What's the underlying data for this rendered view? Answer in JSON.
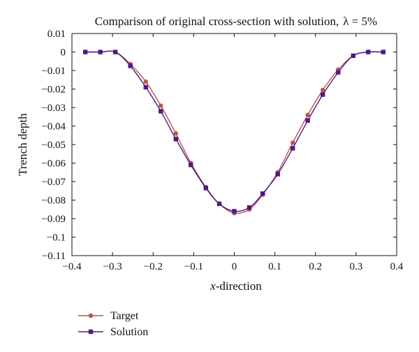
{
  "chart_data": {
    "type": "line",
    "title": "Comparison of original cross-section with solution,",
    "title_param": "λ = 5%",
    "xlabel_italic": "x",
    "xlabel_rest": "-direction",
    "ylabel": "Trench depth",
    "xlim": [
      -0.4,
      0.4
    ],
    "ylim": [
      -0.11,
      0.01
    ],
    "xticks": [
      -0.4,
      -0.3,
      -0.2,
      -0.1,
      0,
      0.1,
      0.2,
      0.3,
      0.4
    ],
    "xtick_labels": [
      "−0.4",
      "−0.3",
      "−0.2",
      "−0.1",
      "0",
      "0.1",
      "0.2",
      "0.3",
      "0.4"
    ],
    "yticks": [
      0.01,
      0,
      -0.01,
      -0.02,
      -0.03,
      -0.04,
      -0.05,
      -0.06,
      -0.07,
      -0.08,
      -0.09,
      -0.1,
      -0.11
    ],
    "ytick_labels": [
      "0.01",
      "0",
      "−0.01",
      "−0.02",
      "−0.03",
      "−0.04",
      "−0.05",
      "−0.06",
      "−0.07",
      "−0.08",
      "−0.09",
      "−0.1",
      "−0.11"
    ],
    "grid": false,
    "legend_position": "below-left",
    "series": [
      {
        "name": "Target",
        "color": "#c0504d",
        "marker": "circle",
        "x": [
          -0.367,
          -0.33,
          -0.293,
          -0.256,
          -0.218,
          -0.181,
          -0.144,
          -0.107,
          -0.07,
          -0.037,
          0.0,
          0.037,
          0.07,
          0.107,
          0.144,
          0.181,
          0.218,
          0.256,
          0.293,
          0.33,
          0.367
        ],
        "y": [
          0.0,
          0.0,
          0.0,
          -0.0065,
          -0.016,
          -0.029,
          -0.044,
          -0.06,
          -0.073,
          -0.082,
          -0.087,
          -0.085,
          -0.077,
          -0.065,
          -0.049,
          -0.034,
          -0.0205,
          -0.0095,
          -0.002,
          0.0,
          0.0
        ]
      },
      {
        "name": "Solution",
        "color": "#4b1a86",
        "marker": "square",
        "x": [
          -0.367,
          -0.33,
          -0.293,
          -0.256,
          -0.218,
          -0.181,
          -0.144,
          -0.107,
          -0.07,
          -0.037,
          0.0,
          0.037,
          0.07,
          0.107,
          0.144,
          0.181,
          0.218,
          0.256,
          0.293,
          0.33,
          0.367
        ],
        "y": [
          0.0,
          0.0,
          0.0,
          -0.0075,
          -0.019,
          -0.032,
          -0.047,
          -0.061,
          -0.0735,
          -0.082,
          -0.086,
          -0.084,
          -0.0765,
          -0.066,
          -0.052,
          -0.037,
          -0.023,
          -0.011,
          -0.002,
          0.0,
          0.0
        ]
      }
    ]
  }
}
